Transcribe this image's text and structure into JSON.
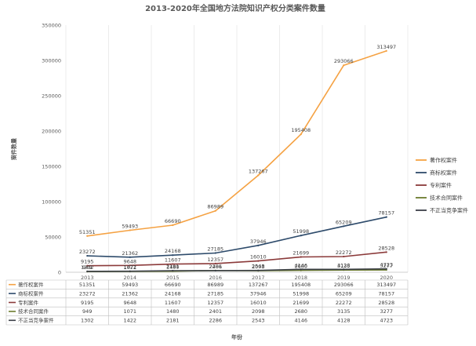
{
  "chart_data": {
    "type": "line",
    "title": "2013-2020年全国地方法院知识产权分类案件数量",
    "xlabel": "年份",
    "ylabel": "案件数量",
    "ylim": [
      0,
      350000
    ],
    "yticks": [
      0,
      50000,
      100000,
      150000,
      200000,
      250000,
      300000,
      350000
    ],
    "categories": [
      "2013",
      "2014",
      "2015",
      "2016",
      "2017",
      "2018",
      "2019",
      "2020"
    ],
    "grid": "vertical",
    "legend_position": "right",
    "data_table": true,
    "series": [
      {
        "name": "著作权案件",
        "color": "#f5a243",
        "values": [
          51351,
          59493,
          66690,
          86989,
          137267,
          195408,
          293066,
          313497
        ]
      },
      {
        "name": "商标权案件",
        "color": "#2e4b6b",
        "values": [
          23272,
          21362,
          24168,
          27185,
          37946,
          51998,
          65209,
          78157
        ]
      },
      {
        "name": "专利案件",
        "color": "#8b3a3a",
        "values": [
          9195,
          9648,
          11607,
          12357,
          16010,
          21699,
          22272,
          28528
        ]
      },
      {
        "name": "技术合同案件",
        "color": "#6b7a2c",
        "values": [
          949,
          1071,
          1480,
          2401,
          2098,
          2680,
          3135,
          3277
        ]
      },
      {
        "name": "不正当竞争案件",
        "color": "#3b3f47",
        "values": [
          1302,
          1422,
          2181,
          2286,
          2543,
          4146,
          4128,
          4723
        ]
      }
    ]
  }
}
